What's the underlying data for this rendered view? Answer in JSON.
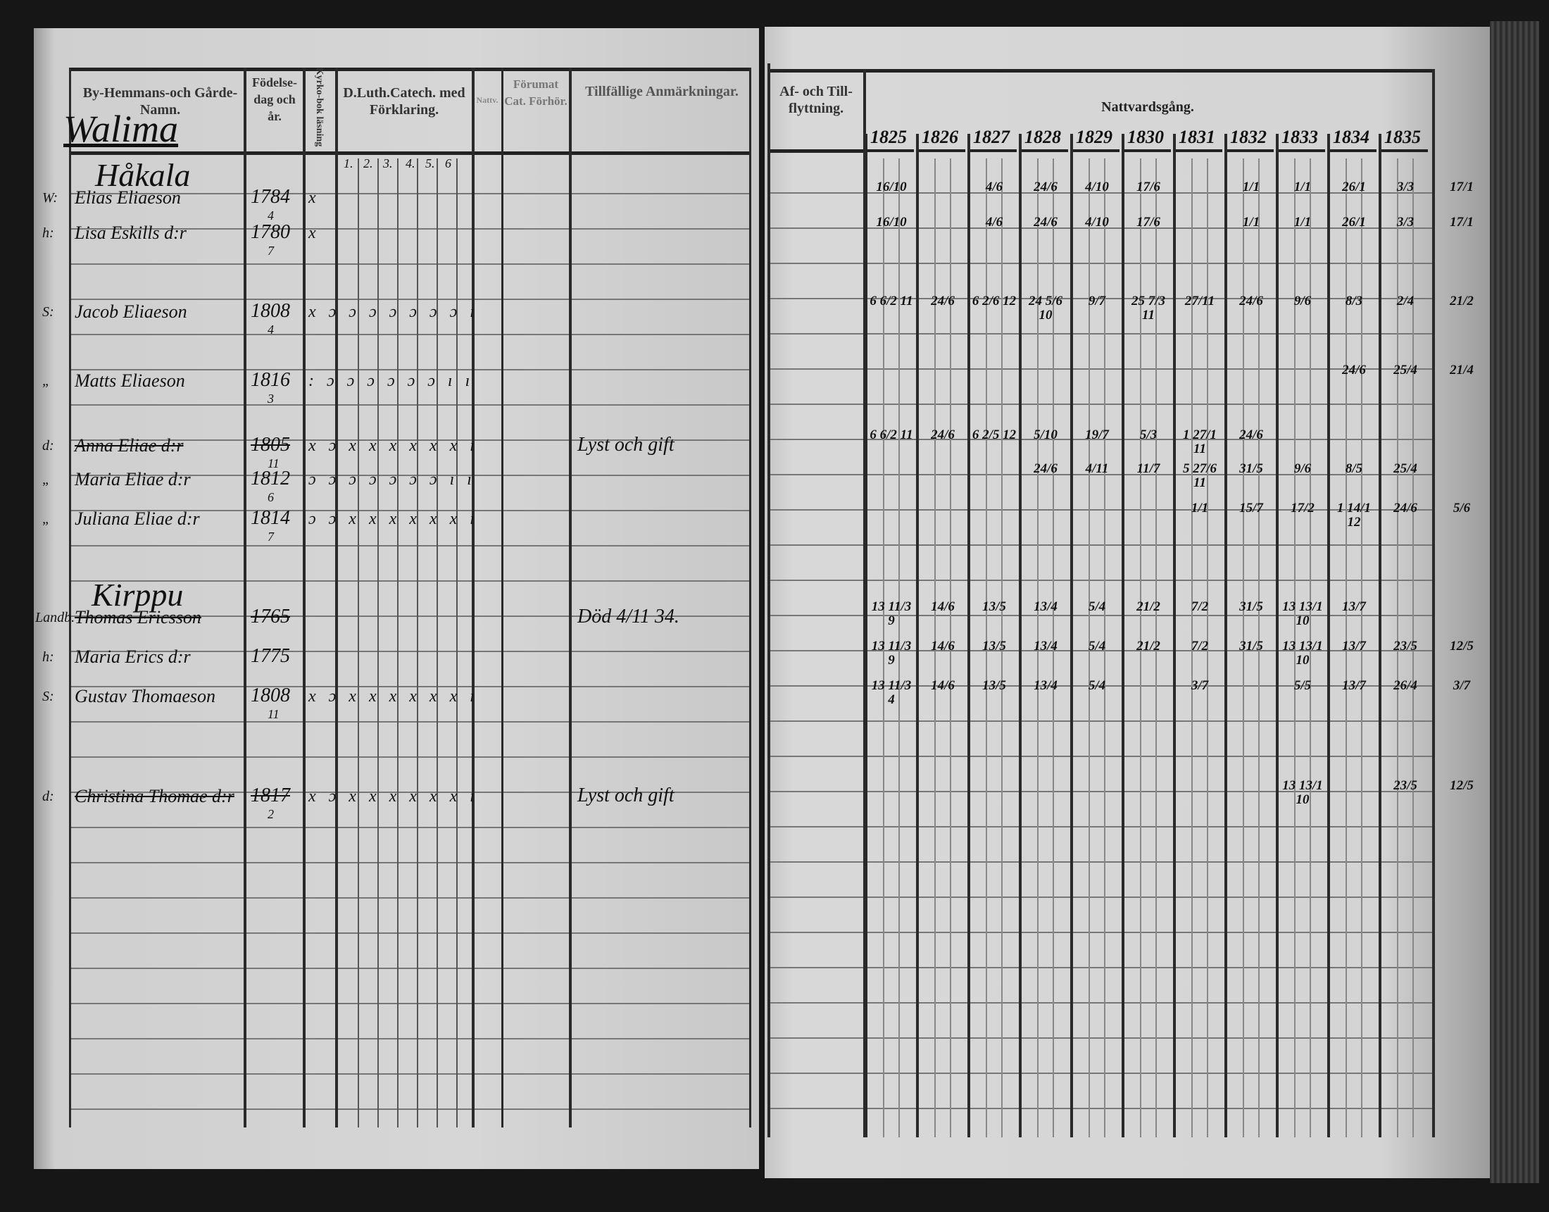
{
  "left_page": {
    "headers": {
      "name": "By-Hemmans-och Gårde-Namn.",
      "birth": "Födelse-dag och år.",
      "bible": "Kyrko-bok läsning",
      "catechism": "D.Luth.Catech. med Förklaring.",
      "catechism_subcols": [
        "1.",
        "2.",
        "3.",
        "4.",
        "5.",
        "6"
      ],
      "communion_small": "Nattv.",
      "hearing": "Förumat Cat. Förhör.",
      "remarks": "Tillfällige Anmärkningar."
    },
    "parish": "Walima",
    "places": [
      "Håkala",
      "Kirppu"
    ],
    "persons": [
      {
        "prefix": "W:",
        "name": "Elias Eliaeson",
        "birth": "1784",
        "birth_sub": "4",
        "marks": "x",
        "remark": "",
        "struck": false
      },
      {
        "prefix": "h:",
        "name": "Lisa Eskills d:r",
        "birth": "1780",
        "birth_sub": "7",
        "marks": "x",
        "remark": "",
        "struck": false
      },
      {
        "prefix": "S:",
        "name": "Jacob Eliaeson",
        "birth": "1808",
        "birth_sub": "4",
        "marks": "x ɔ ɔ ɔ ɔ ɔ ɔ ɔ ı",
        "remark": "",
        "struck": false
      },
      {
        "prefix": "„",
        "name": "Matts Eliaeson",
        "birth": "1816",
        "birth_sub": "3",
        "marks": ": ɔ ɔ ɔ ɔ ɔ ɔ ı ı",
        "remark": "",
        "struck": false
      },
      {
        "prefix": "d:",
        "name": "Anna Eliae d:r",
        "birth": "1805",
        "birth_sub": "11",
        "marks": "x ɔ x x x x x x ı",
        "remark": "Lyst och gift",
        "struck": true
      },
      {
        "prefix": "„",
        "name": "Maria Eliae d:r",
        "birth": "1812",
        "birth_sub": "6",
        "marks": "ɔ ɔ ɔ ɔ ɔ ɔ ɔ ı ı",
        "remark": "",
        "struck": false
      },
      {
        "prefix": "„",
        "name": "Juliana Eliae d:r",
        "birth": "1814",
        "birth_sub": "7",
        "marks": "ɔ ɔ x x x x x x ı",
        "remark": "",
        "struck": false
      },
      {
        "prefix": "Landb.",
        "name": "Thomas Ericsson",
        "birth": "1765",
        "birth_sub": "",
        "marks": "",
        "remark": "Död 4/11 34.",
        "struck": true
      },
      {
        "prefix": "h:",
        "name": "Maria Erics d:r",
        "birth": "1775",
        "birth_sub": "",
        "marks": "",
        "remark": "",
        "struck": false
      },
      {
        "prefix": "S:",
        "name": "Gustav Thomaeson",
        "birth": "1808",
        "birth_sub": "11",
        "marks": "x ɔ x x x x x x ı",
        "remark": "",
        "struck": false
      },
      {
        "prefix": "d:",
        "name": "Christina Thomae d:r",
        "birth": "1817",
        "birth_sub": "2",
        "marks": "x ɔ x x x x x x ı",
        "remark": "Lyst och gift",
        "struck": true
      }
    ]
  },
  "right_page": {
    "headers": {
      "moving": "Af- och Till-flyttning.",
      "communion": "Nattvardsgång."
    },
    "years": [
      "1825",
      "1826",
      "1827",
      "1828",
      "1829",
      "1830",
      "1831",
      "1832",
      "1833",
      "1834",
      "1835"
    ],
    "communion_rows": [
      {
        "1825": "16/10",
        "1827": "4/6",
        "1828": "24/6",
        "1829": "4/10",
        "1830": "17/6",
        "1832": "1/1",
        "1833": "1/1",
        "1834": "26/1",
        "1835": "3/3",
        "extra": "17/1"
      },
      {
        "1825": "16/10",
        "1827": "4/6",
        "1828": "24/6",
        "1829": "4/10",
        "1830": "17/6",
        "1832": "1/1",
        "1833": "1/1",
        "1834": "26/1",
        "1835": "3/3",
        "extra": "17/1"
      },
      {
        "1825": "6 6/2 11",
        "1826": "24/6",
        "1827": "6 2/6 12",
        "1828": "24 5/6 10",
        "1829": "9/7",
        "1830": "25 7/3 11",
        "1831": "27/11",
        "1832": "24/6",
        "1833": "9/6",
        "1834": "8/3",
        "1835": "2/4",
        "extra": "21/2"
      },
      {
        "1834": "24/6",
        "1835": "25/4",
        "extra": "21/4"
      },
      {
        "1825": "6 6/2 11",
        "1826": "24/6",
        "1827": "6 2/5 12",
        "1828": "5/10",
        "1829": "19/7",
        "1830": "5/3",
        "1831": "1 27/1 11",
        "1832": "24/6"
      },
      {
        "1828": "24/6",
        "1829": "4/11",
        "1830": "11/7",
        "1831": "5 27/6 11",
        "1832": "31/5",
        "1833": "9/6",
        "1834": "8/5",
        "1835": "25/4"
      },
      {
        "1831": "1/1",
        "1832": "15/7",
        "1833": "17/2",
        "1834": "1 14/1 12",
        "1835": "24/6",
        "extra": "5/6"
      },
      {
        "1825": "13 11/3 9",
        "1826": "14/6",
        "1827": "13/5",
        "1828": "13/4",
        "1829": "5/4",
        "1830": "21/2",
        "1831": "7/2",
        "1832": "31/5",
        "1833": "13 13/1 10",
        "1834": "13/7"
      },
      {
        "1825": "13 11/3 9",
        "1826": "14/6",
        "1827": "13/5",
        "1828": "13/4",
        "1829": "5/4",
        "1830": "21/2",
        "1831": "7/2",
        "1832": "31/5",
        "1833": "13 13/1 10",
        "1834": "13/7",
        "1835": "23/5",
        "extra": "12/5"
      },
      {
        "1825": "13 11/3 4",
        "1826": "14/6",
        "1827": "13/5",
        "1828": "13/4",
        "1829": "5/4",
        "1831": "3/7",
        "1833": "5/5",
        "1834": "13/7",
        "1835": "26/4",
        "extra": "3/7"
      },
      {
        "1833": "13 13/1 10",
        "1835": "23/5",
        "extra": "12/5"
      }
    ]
  },
  "colors": {
    "paper": "#d4d4d4",
    "ink": "#141414",
    "background": "#161616"
  }
}
